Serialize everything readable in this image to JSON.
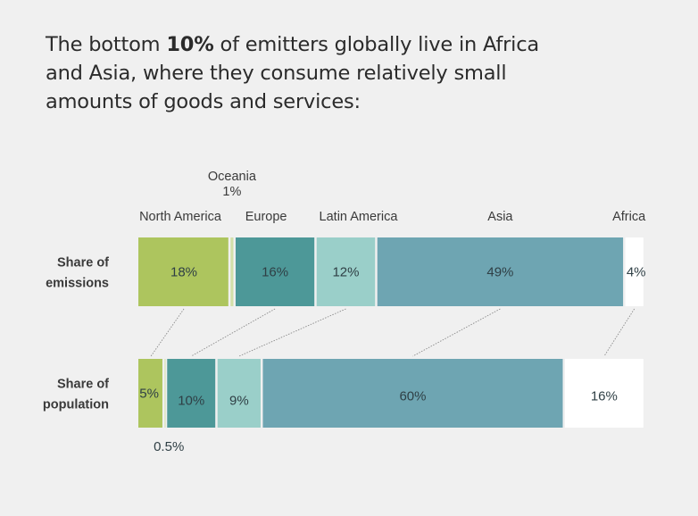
{
  "title": {
    "before": "The bottom ",
    "bold": "10%",
    "after": " of emitters globally live in Africa and Asia, where they consume relatively small amounts of goods and services:"
  },
  "chart_data": {
    "type": "bar",
    "orientation": "horizontal-stacked-100",
    "categories": [
      "North America",
      "Oceania",
      "Europe",
      "Latin America",
      "Asia",
      "Africa"
    ],
    "category_labels_top": [
      {
        "name": "North America",
        "note": ""
      },
      {
        "name": "Oceania",
        "note": "1%"
      },
      {
        "name": "Europe",
        "note": ""
      },
      {
        "name": "Latin America",
        "note": ""
      },
      {
        "name": "Asia",
        "note": ""
      },
      {
        "name": "Africa",
        "note": ""
      }
    ],
    "colors": {
      "North America": "#adc55e",
      "Oceania": "#d3e0a8",
      "Europe": "#4d9898",
      "Latin America": "#9acfc9",
      "Asia": "#6ea5b2",
      "Africa": "#ffffff"
    },
    "series": [
      {
        "name": "Share of emissions",
        "row_label": [
          "Share of",
          "emissions"
        ],
        "values": [
          18,
          1,
          16,
          12,
          49,
          4
        ],
        "labels": [
          "18%",
          "",
          "16%",
          "12%",
          "49%",
          "4%"
        ]
      },
      {
        "name": "Share of population",
        "row_label": [
          "Share of",
          "population"
        ],
        "values": [
          5,
          0.5,
          10,
          9,
          60,
          16
        ],
        "labels": [
          "5%",
          "0.5%",
          "10%",
          "9%",
          "60%",
          "16%"
        ]
      }
    ],
    "connectors": [
      "North America",
      "Europe",
      "Latin America",
      "Asia",
      "Africa"
    ],
    "xlim": [
      0,
      100
    ],
    "legend": "none",
    "grid": false
  }
}
